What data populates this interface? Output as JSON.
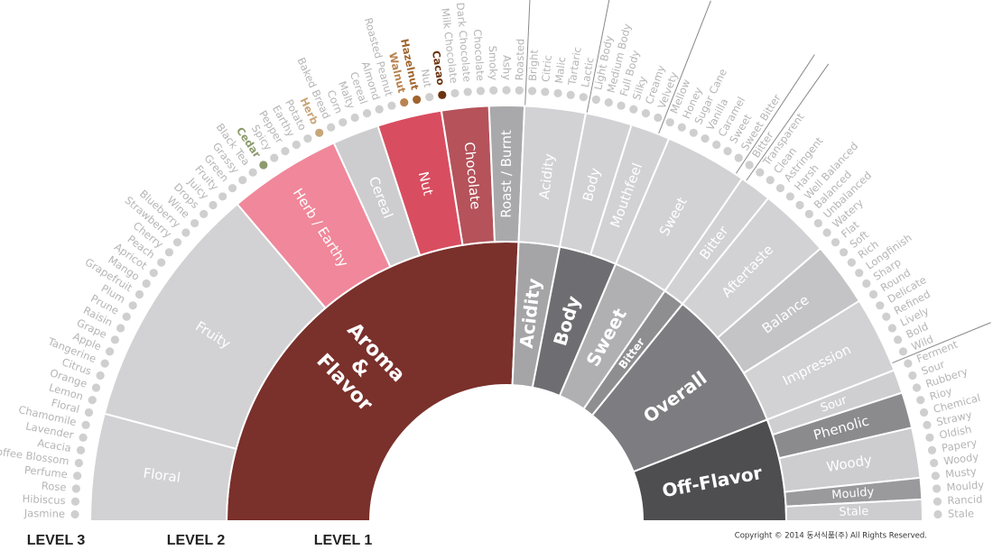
{
  "level_labels": [
    "LEVEL 3",
    "LEVEL 2",
    "LEVEL 1"
  ],
  "copyright": "Copyright © 2014 동서식품(주) All Rights Reserved.",
  "level1": [
    {
      "lines": [
        "Aroma",
        "&",
        "Flavor"
      ],
      "color": "#7a302b"
    },
    {
      "lines": [
        "Acidity"
      ],
      "color": "#a5a5a8"
    },
    {
      "lines": [
        "Body"
      ],
      "color": "#6e6e72"
    },
    {
      "lines": [
        "Sweet"
      ],
      "color": "#b0b0b3"
    },
    {
      "lines": [
        "Bitter"
      ],
      "color": "#8e8e91"
    },
    {
      "lines": [
        "Overall"
      ],
      "color": "#7d7d81"
    },
    {
      "lines": [
        "Off-Flavor"
      ],
      "color": "#4e4e51"
    }
  ],
  "level2": [
    {
      "label": "Floral",
      "color": "#d2d2d4"
    },
    {
      "label": "Fruity",
      "color": "#d2d2d4"
    },
    {
      "label": "Herb / Earthy",
      "color": "#f0879a"
    },
    {
      "label": "Cereal",
      "color": "#cdcdcf"
    },
    {
      "label": "Nut",
      "color": "#d94d60"
    },
    {
      "label": "Chocolate",
      "color": "#b5525a"
    },
    {
      "label": "Roast / Burnt",
      "color": "#a9a9ab"
    },
    {
      "label": "Acidity",
      "color": "#d2d2d4"
    },
    {
      "label": "Body",
      "color": "#d2d2d4"
    },
    {
      "label": "Mouthfeel",
      "color": "#d2d2d4"
    },
    {
      "label": "Sweet",
      "color": "#d2d2d4"
    },
    {
      "label": "Bitter",
      "color": "#d2d2d4"
    },
    {
      "label": "Aftertaste",
      "color": "#d2d2d4"
    },
    {
      "label": "Balance",
      "color": "#c4c4c6"
    },
    {
      "label": "Impression",
      "color": "#d2d2d4"
    },
    {
      "label": "Sour",
      "color": "#cfcfd1"
    },
    {
      "label": "Phenolic",
      "color": "#8b8b8e"
    },
    {
      "label": "Woody",
      "color": "#cdcdcf"
    },
    {
      "label": "Mouldy",
      "color": "#9a9a9d"
    },
    {
      "label": "Stale",
      "color": "#cdcdcf"
    }
  ],
  "level3_color": "#b5b5b5",
  "level3": [
    {
      "label": "Jasmine"
    },
    {
      "label": "Hibiscus"
    },
    {
      "label": "Rose"
    },
    {
      "label": "Perfume"
    },
    {
      "label": "Coffee Blossom"
    },
    {
      "label": "Acacia"
    },
    {
      "label": "Lavender"
    },
    {
      "label": "Chamomile"
    },
    {
      "label": "Floral"
    },
    {
      "label": "Lemon"
    },
    {
      "label": "Orange"
    },
    {
      "label": "Citrus"
    },
    {
      "label": "Tangerine"
    },
    {
      "label": "Apple"
    },
    {
      "label": "Grape"
    },
    {
      "label": "Raisin"
    },
    {
      "label": "Prune"
    },
    {
      "label": "Plum"
    },
    {
      "label": "Grapefruit"
    },
    {
      "label": "Mango"
    },
    {
      "label": "Apricot"
    },
    {
      "label": "Peach"
    },
    {
      "label": "Cherry"
    },
    {
      "label": "Strawberry"
    },
    {
      "label": "Blueberry"
    },
    {
      "label": "Wine"
    },
    {
      "label": "Drops"
    },
    {
      "label": "Juicy"
    },
    {
      "label": "Fruity"
    },
    {
      "label": "Green"
    },
    {
      "label": "Grassy"
    },
    {
      "label": "Black Tea"
    },
    {
      "label": "Cedar",
      "color": "#8c9b6c"
    },
    {
      "label": "Spicy"
    },
    {
      "label": "Pepper"
    },
    {
      "label": "Earthy"
    },
    {
      "label": "Potato"
    },
    {
      "label": "Herb",
      "color": "#c8a679"
    },
    {
      "label": "Baked Bread"
    },
    {
      "label": "Corn"
    },
    {
      "label": "Malty"
    },
    {
      "label": "Cereal"
    },
    {
      "label": "Almond"
    },
    {
      "label": "Roasted Peanut"
    },
    {
      "label": "Walnut",
      "color": "#b9834f"
    },
    {
      "label": "Hazelnut",
      "color": "#a0642e"
    },
    {
      "label": "Nut"
    },
    {
      "label": "Cacao",
      "color": "#6b3410"
    },
    {
      "label": "Milk Chocolate"
    },
    {
      "label": "Dark Chocolate"
    },
    {
      "label": "Chocolate"
    },
    {
      "label": "Smoky"
    },
    {
      "label": "Ashy"
    },
    {
      "label": "Roasted"
    },
    {
      "label": "Bright"
    },
    {
      "label": "Citric"
    },
    {
      "label": "Malic"
    },
    {
      "label": "Tartaric"
    },
    {
      "label": "Lactic"
    },
    {
      "label": "Light Body"
    },
    {
      "label": "Medium Body"
    },
    {
      "label": "Full Body"
    },
    {
      "label": "Silky"
    },
    {
      "label": "Creamy"
    },
    {
      "label": "Velvety"
    },
    {
      "label": "Mellow"
    },
    {
      "label": "Honey"
    },
    {
      "label": "Sugar Cane"
    },
    {
      "label": "Vanilla"
    },
    {
      "label": "Caramel"
    },
    {
      "label": "Sweet"
    },
    {
      "label": "Sweet Bitter"
    },
    {
      "label": "Bitter"
    },
    {
      "label": "Transparent"
    },
    {
      "label": "Clean"
    },
    {
      "label": "Astringent"
    },
    {
      "label": "Harsh"
    },
    {
      "label": "Well Balanced"
    },
    {
      "label": "Balanced"
    },
    {
      "label": "Unbalanced"
    },
    {
      "label": "Watery"
    },
    {
      "label": "Flat"
    },
    {
      "label": "Soft"
    },
    {
      "label": "Rich"
    },
    {
      "label": "Longfinish"
    },
    {
      "label": "Sharp"
    },
    {
      "label": "Round"
    },
    {
      "label": "Delicate"
    },
    {
      "label": "Refined"
    },
    {
      "label": "Lively"
    },
    {
      "label": "Bold"
    },
    {
      "label": "Wild"
    },
    {
      "label": "Ferment"
    },
    {
      "label": "Sour"
    },
    {
      "label": "Rubbery"
    },
    {
      "label": "Rioy"
    },
    {
      "label": "Chemical"
    },
    {
      "label": "Strawy"
    },
    {
      "label": "Oldish"
    },
    {
      "label": "Papery"
    },
    {
      "label": "Woody"
    },
    {
      "label": "Musty"
    },
    {
      "label": "Mouldy"
    },
    {
      "label": "Rancid"
    },
    {
      "label": "Stale"
    }
  ]
}
